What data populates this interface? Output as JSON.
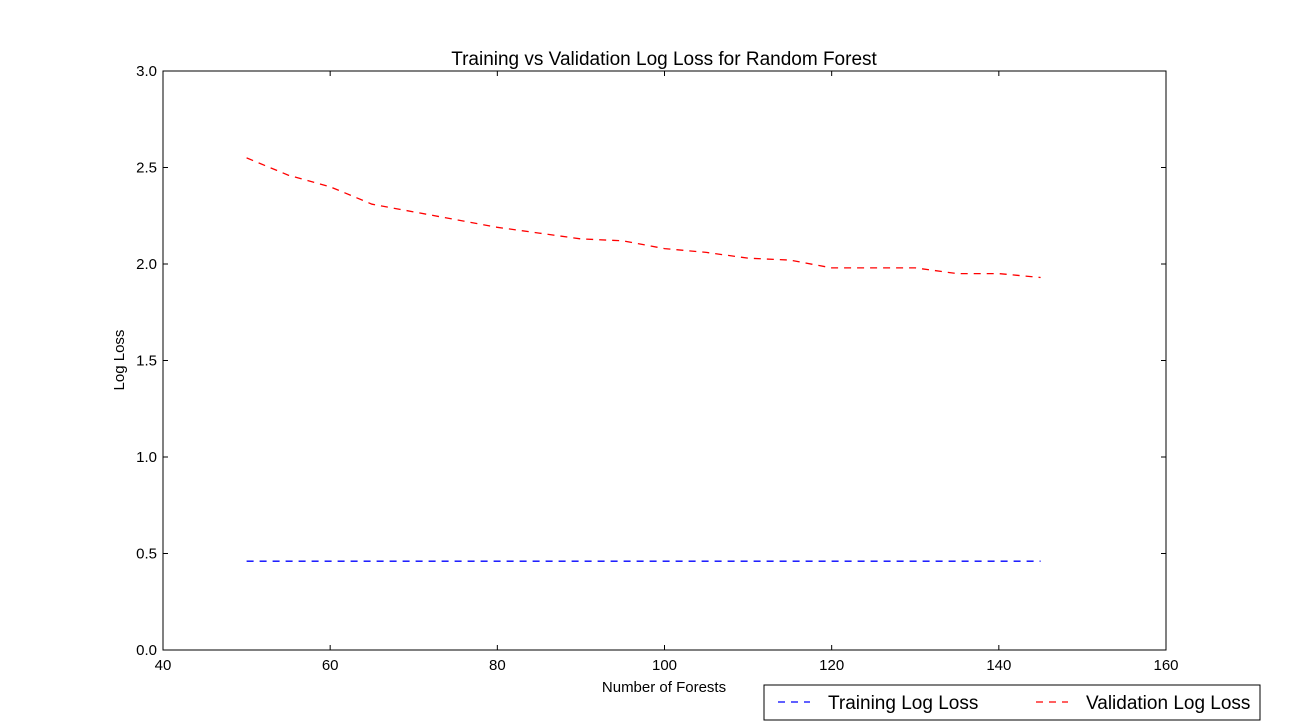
{
  "chart_data": {
    "type": "line",
    "title": "Training vs Validation Log Loss for Random Forest",
    "xlabel": "Number of Forests",
    "ylabel": "Log Loss",
    "xlim": [
      40,
      160
    ],
    "ylim": [
      0.0,
      3.0
    ],
    "xticks": [
      "40",
      "60",
      "80",
      "100",
      "120",
      "140",
      "160"
    ],
    "yticks": [
      "0.0",
      "0.5",
      "1.0",
      "1.5",
      "2.0",
      "2.5",
      "3.0"
    ],
    "grid": false,
    "legend_position": "bottom-right, outside plot area",
    "x": [
      50,
      55,
      60,
      65,
      70,
      75,
      80,
      85,
      90,
      95,
      100,
      105,
      110,
      115,
      120,
      125,
      130,
      135,
      140,
      145
    ],
    "series": [
      {
        "name": "Training Log Loss",
        "color": "#0000ff",
        "line_style": "dashed",
        "values": [
          0.46,
          0.46,
          0.46,
          0.46,
          0.46,
          0.46,
          0.46,
          0.46,
          0.46,
          0.46,
          0.46,
          0.46,
          0.46,
          0.46,
          0.46,
          0.46,
          0.46,
          0.46,
          0.46,
          0.46
        ]
      },
      {
        "name": "Validation Log Loss",
        "color": "#ff0000",
        "line_style": "dashed",
        "values": [
          2.55,
          2.46,
          2.4,
          2.31,
          2.27,
          2.23,
          2.19,
          2.16,
          2.13,
          2.12,
          2.08,
          2.06,
          2.03,
          2.02,
          1.98,
          1.98,
          1.98,
          1.95,
          1.95,
          1.93
        ]
      }
    ]
  }
}
